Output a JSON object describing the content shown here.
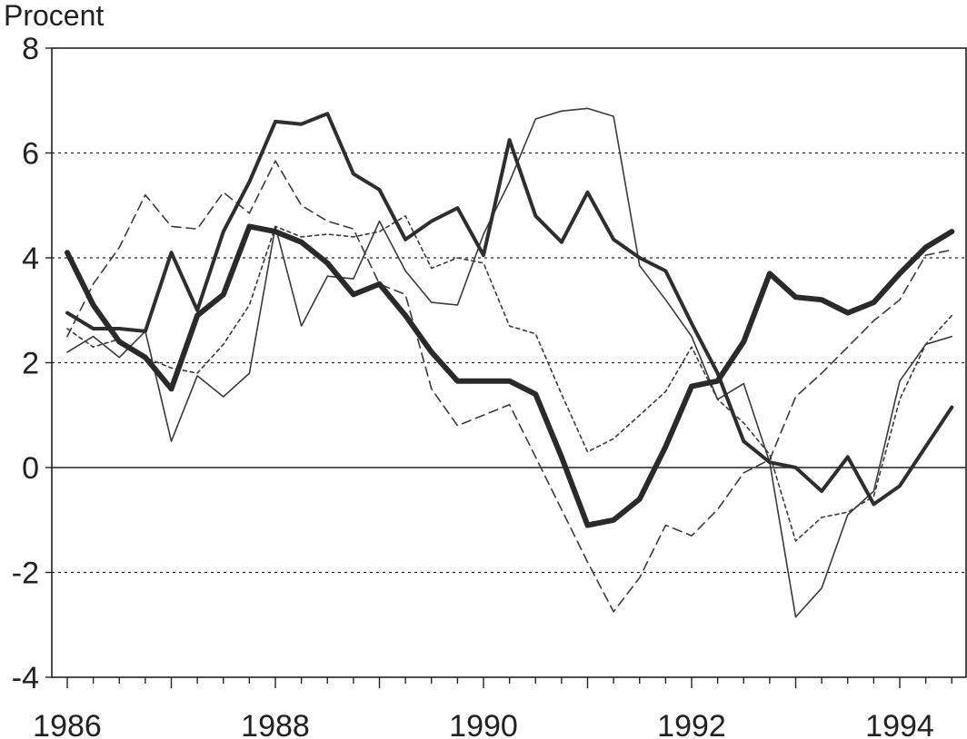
{
  "chart_data": {
    "type": "line",
    "title": "",
    "ylabel": "Procent",
    "xlabel": "",
    "xlim": [
      1986,
      1994.75
    ],
    "ylim": [
      -4,
      8
    ],
    "yticks": [
      -4,
      -2,
      0,
      2,
      4,
      6,
      8
    ],
    "ytick_labels": [
      "-4",
      "-2",
      "0",
      "2",
      "4",
      "6",
      "8"
    ],
    "xticks": [
      1986,
      1988,
      1990,
      1992,
      1994
    ],
    "xtick_labels": [
      "1986",
      "1988",
      "1990",
      "1992",
      "1994"
    ],
    "grid": "horizontal dotted",
    "x": [
      1986.0,
      1986.25,
      1986.5,
      1986.75,
      1987.0,
      1987.25,
      1987.5,
      1987.75,
      1988.0,
      1988.25,
      1988.5,
      1988.75,
      1989.0,
      1989.25,
      1989.5,
      1989.75,
      1990.0,
      1990.25,
      1990.5,
      1990.75,
      1991.0,
      1991.25,
      1991.5,
      1991.75,
      1992.0,
      1992.25,
      1992.5,
      1992.75,
      1993.0,
      1993.25,
      1993.5,
      1993.75,
      1994.0,
      1994.25,
      1994.5
    ],
    "series": [
      {
        "style": "thick solid",
        "values": [
          4.1,
          3.1,
          2.4,
          2.1,
          1.5,
          2.9,
          3.3,
          4.6,
          4.5,
          4.3,
          3.9,
          3.3,
          3.5,
          2.9,
          2.2,
          1.65,
          1.65,
          1.65,
          1.4,
          0.2,
          -1.1,
          -1.0,
          -0.6,
          0.4,
          1.55,
          1.65,
          2.4,
          3.7,
          3.25,
          3.2,
          2.95,
          3.15,
          3.7,
          4.2,
          4.5
        ]
      },
      {
        "style": "medium solid",
        "values": [
          2.95,
          2.65,
          2.65,
          2.6,
          4.1,
          3.0,
          4.5,
          5.45,
          6.6,
          6.55,
          6.75,
          5.6,
          5.3,
          4.35,
          4.7,
          4.95,
          4.05,
          6.25,
          4.8,
          4.3,
          5.25,
          4.35,
          4.0,
          3.75,
          2.75,
          1.8,
          0.5,
          0.1,
          0.0,
          -0.45,
          0.2,
          -0.7,
          -0.35,
          0.4,
          1.15
        ]
      },
      {
        "style": "thin solid",
        "values": [
          2.2,
          2.5,
          2.1,
          2.6,
          0.5,
          1.75,
          1.35,
          1.8,
          4.6,
          2.7,
          3.65,
          3.6,
          4.7,
          3.75,
          3.15,
          3.1,
          4.45,
          5.45,
          6.65,
          6.8,
          6.85,
          6.7,
          3.85,
          3.2,
          2.5,
          1.3,
          1.6,
          0.1,
          -2.85,
          -2.3,
          -0.9,
          -0.45,
          1.65,
          2.35,
          2.5
        ]
      },
      {
        "style": "dashed",
        "values": [
          2.5,
          3.5,
          4.2,
          5.2,
          4.6,
          4.55,
          5.25,
          4.85,
          5.85,
          5.0,
          4.7,
          4.55,
          3.5,
          3.3,
          1.5,
          0.8,
          1.0,
          1.2,
          0.2,
          -0.8,
          -1.8,
          -2.75,
          -2.1,
          -1.1,
          -1.3,
          -0.8,
          -0.1,
          0.15,
          1.35,
          1.8,
          2.3,
          2.8,
          3.2,
          4.05,
          4.15
        ]
      },
      {
        "style": "dotted",
        "values": [
          2.65,
          2.3,
          2.45,
          2.1,
          1.9,
          1.8,
          2.35,
          3.1,
          4.6,
          4.4,
          4.45,
          4.4,
          4.5,
          4.8,
          3.8,
          4.0,
          3.9,
          2.7,
          2.55,
          1.4,
          0.3,
          0.55,
          1.0,
          1.45,
          2.3,
          1.3,
          0.85,
          0.25,
          -1.4,
          -0.95,
          -0.85,
          -0.55,
          1.3,
          2.35,
          2.9
        ]
      }
    ]
  }
}
